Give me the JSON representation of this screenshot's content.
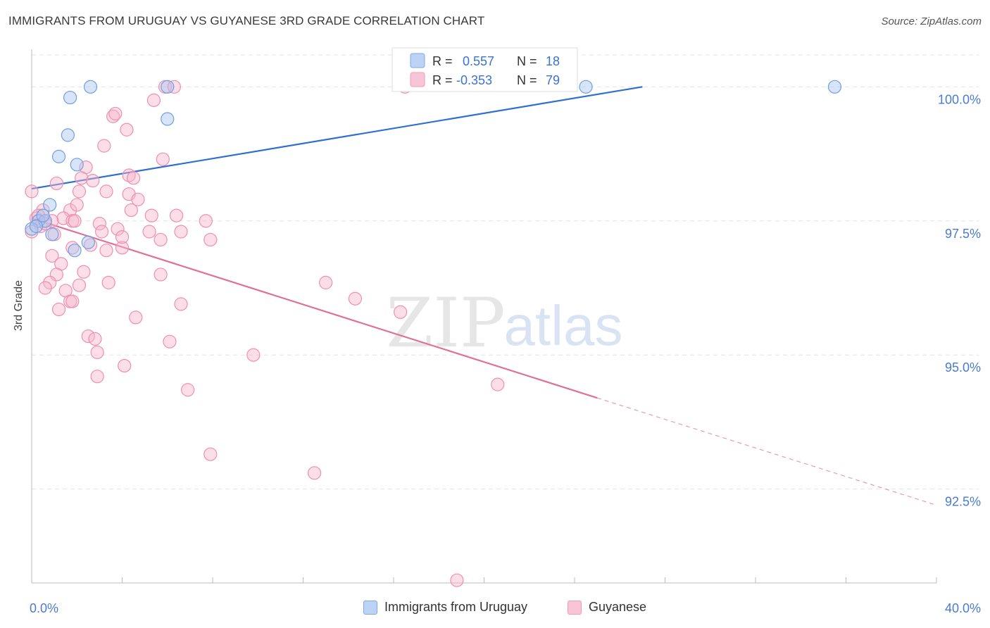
{
  "title": "IMMIGRANTS FROM URUGUAY VS GUYANESE 3RD GRADE CORRELATION CHART",
  "source": "Source: ZipAtlas.com",
  "watermark": {
    "zip": "ZIP",
    "atlas": "atlas"
  },
  "legend_top": {
    "rows": [
      {
        "r_label": "R =",
        "r_value": "0.557",
        "n_label": "N =",
        "n_value": "18"
      },
      {
        "r_label": "R =",
        "r_value": "-0.353",
        "n_label": "N =",
        "n_value": "79"
      }
    ]
  },
  "legend_bottom": {
    "items": [
      {
        "label": "Immigrants from Uruguay"
      },
      {
        "label": "Guyanese"
      }
    ]
  },
  "colors": {
    "uruguay_fill": "#a9c6f2",
    "uruguay_stroke": "#6f9fe0",
    "uruguay_line": "#2f6fd0",
    "guyanese_fill": "#f6b5cb",
    "guyanese_stroke": "#ef8fb0",
    "guyanese_line": "#e0709a",
    "axis_text": "#4a7bd0",
    "grid": "#e3e3e3"
  },
  "chart_data": {
    "type": "scatter",
    "title": "IMMIGRANTS FROM URUGUAY VS GUYANESE 3RD GRADE CORRELATION CHART",
    "xlabel": "",
    "ylabel": "3rd Grade",
    "xlim": [
      0,
      40
    ],
    "ylim": [
      90.75,
      100.7
    ],
    "x_ticks": [
      0,
      40
    ],
    "x_tick_labels": [
      "0.0%",
      "40.0%"
    ],
    "y_ticks": [
      92.5,
      95.0,
      97.5,
      100.0
    ],
    "y_tick_labels": [
      "92.5%",
      "95.0%",
      "97.5%",
      "100.0%"
    ],
    "grid": true,
    "legend": "top-center",
    "series": [
      {
        "name": "Immigrants from Uruguay",
        "r": 0.557,
        "n": 18,
        "trend": {
          "x0": 0,
          "y0": 98.1,
          "x1": 27,
          "y1": 100.0
        },
        "points": [
          [
            2.6,
            100.0
          ],
          [
            6.0,
            100.0
          ],
          [
            24.5,
            100.0
          ],
          [
            35.5,
            100.0
          ],
          [
            1.7,
            99.8
          ],
          [
            6.0,
            99.4
          ],
          [
            1.6,
            99.1
          ],
          [
            1.2,
            98.7
          ],
          [
            2.0,
            98.55
          ],
          [
            0.8,
            97.8
          ],
          [
            0.3,
            97.5
          ],
          [
            0.6,
            97.5
          ],
          [
            0.0,
            97.35
          ],
          [
            0.9,
            97.25
          ],
          [
            2.5,
            97.1
          ],
          [
            1.9,
            96.95
          ],
          [
            0.2,
            97.4
          ],
          [
            0.5,
            97.6
          ]
        ]
      },
      {
        "name": "Guyanese",
        "r": -0.353,
        "n": 79,
        "trend": {
          "x0": 0,
          "y0": 97.55,
          "x1": 25,
          "y1": 94.2,
          "x1_dashed": 40,
          "y1_dashed": 92.2
        },
        "points": [
          [
            5.9,
            100.0
          ],
          [
            6.3,
            100.0
          ],
          [
            16.5,
            100.0
          ],
          [
            5.4,
            99.75
          ],
          [
            3.6,
            99.45
          ],
          [
            4.2,
            99.2
          ],
          [
            3.2,
            98.9
          ],
          [
            5.8,
            98.65
          ],
          [
            2.4,
            98.5
          ],
          [
            4.3,
            98.35
          ],
          [
            2.2,
            98.3
          ],
          [
            2.7,
            98.25
          ],
          [
            1.1,
            98.2
          ],
          [
            4.5,
            98.3
          ],
          [
            0.0,
            98.05
          ],
          [
            2.1,
            98.05
          ],
          [
            3.3,
            98.05
          ],
          [
            4.3,
            98.0
          ],
          [
            4.7,
            97.9
          ],
          [
            0.5,
            97.7
          ],
          [
            1.7,
            97.7
          ],
          [
            4.4,
            97.7
          ],
          [
            5.3,
            97.6
          ],
          [
            6.4,
            97.6
          ],
          [
            0.2,
            97.55
          ],
          [
            1.4,
            97.55
          ],
          [
            1.8,
            97.5
          ],
          [
            0.9,
            97.5
          ],
          [
            7.7,
            97.5
          ],
          [
            3.0,
            97.45
          ],
          [
            0.4,
            97.4
          ],
          [
            3.8,
            97.35
          ],
          [
            5.2,
            97.3
          ],
          [
            6.6,
            97.3
          ],
          [
            3.1,
            97.3
          ],
          [
            1.0,
            97.25
          ],
          [
            5.7,
            97.15
          ],
          [
            7.9,
            97.15
          ],
          [
            4.0,
            97.0
          ],
          [
            1.8,
            97.0
          ],
          [
            3.3,
            96.95
          ],
          [
            0.9,
            96.85
          ],
          [
            1.3,
            96.7
          ],
          [
            2.3,
            96.55
          ],
          [
            1.1,
            96.5
          ],
          [
            5.7,
            96.5
          ],
          [
            3.4,
            96.35
          ],
          [
            0.8,
            96.35
          ],
          [
            2.1,
            96.3
          ],
          [
            13.0,
            96.35
          ],
          [
            0.6,
            96.25
          ],
          [
            1.5,
            96.2
          ],
          [
            1.7,
            96.0
          ],
          [
            14.3,
            96.05
          ],
          [
            6.6,
            95.95
          ],
          [
            1.8,
            96.0
          ],
          [
            1.2,
            95.85
          ],
          [
            16.3,
            95.8
          ],
          [
            4.6,
            95.7
          ],
          [
            2.5,
            95.35
          ],
          [
            2.8,
            95.3
          ],
          [
            6.1,
            95.25
          ],
          [
            2.9,
            95.05
          ],
          [
            9.8,
            95.0
          ],
          [
            4.1,
            94.8
          ],
          [
            2.9,
            94.6
          ],
          [
            20.6,
            94.45
          ],
          [
            6.9,
            94.35
          ],
          [
            7.9,
            93.15
          ],
          [
            12.5,
            92.8
          ],
          [
            18.8,
            90.8
          ],
          [
            0.3,
            97.6
          ],
          [
            0.6,
            97.45
          ],
          [
            2.6,
            97.05
          ],
          [
            1.9,
            97.5
          ],
          [
            0.0,
            97.3
          ],
          [
            3.7,
            99.5
          ],
          [
            2.0,
            97.8
          ],
          [
            4.0,
            97.2
          ]
        ]
      }
    ]
  }
}
